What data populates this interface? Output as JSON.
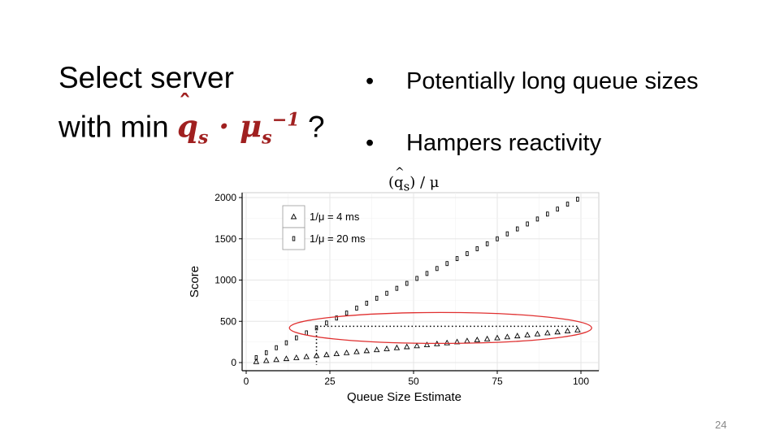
{
  "slide": {
    "title_line1": "Select server",
    "title_line2_prefix": "with min",
    "formula_q": "q",
    "formula_s": "s",
    "formula_dot": "·",
    "formula_mu": "μ",
    "formula_exp": "−1",
    "title_suffix": "?",
    "bullets": [
      "Potentially long queue sizes",
      "Hampers reactivity"
    ],
    "page_number": "24"
  },
  "chart_subtitle": {
    "open": "(",
    "q": "q",
    "s": "s",
    "rest": ") / μ"
  },
  "chart_data": {
    "type": "scatter",
    "xlabel": "Queue Size Estimate",
    "ylabel": "Score",
    "xlim": [
      0,
      100
    ],
    "ylim": [
      0,
      2000
    ],
    "xticks": [
      0,
      25,
      50,
      75,
      100
    ],
    "yticks": [
      0,
      500,
      1000,
      1500,
      2000
    ],
    "grid": true,
    "legend_position": "top-left",
    "series": [
      {
        "name": "1/μ = 4 ms",
        "marker": "triangle",
        "x": [
          3,
          6,
          9,
          12,
          15,
          18,
          21,
          24,
          27,
          30,
          33,
          36,
          39,
          42,
          45,
          48,
          51,
          54,
          57,
          60,
          63,
          66,
          69,
          72,
          75,
          78,
          81,
          84,
          87,
          90,
          93,
          96,
          99
        ],
        "y": [
          12,
          24,
          36,
          48,
          60,
          72,
          84,
          96,
          108,
          120,
          132,
          144,
          156,
          168,
          180,
          192,
          204,
          216,
          228,
          240,
          252,
          264,
          276,
          288,
          300,
          312,
          324,
          336,
          348,
          360,
          372,
          384,
          396
        ]
      },
      {
        "name": "1/μ = 20 ms",
        "marker": "square",
        "x": [
          3,
          6,
          9,
          12,
          15,
          18,
          21,
          24,
          27,
          30,
          33,
          36,
          39,
          42,
          45,
          48,
          51,
          54,
          57,
          60,
          63,
          66,
          69,
          72,
          75,
          78,
          81,
          84,
          87,
          90,
          93,
          96,
          99
        ],
        "y": [
          60,
          120,
          180,
          240,
          300,
          360,
          420,
          480,
          540,
          600,
          660,
          720,
          780,
          840,
          900,
          960,
          1020,
          1080,
          1140,
          1200,
          1260,
          1320,
          1380,
          1440,
          1500,
          1560,
          1620,
          1680,
          1740,
          1800,
          1860,
          1920,
          1980
        ]
      }
    ],
    "annotations": {
      "reference_point": {
        "x": 21,
        "y": 420
      },
      "ellipse_center": {
        "x": 60,
        "y": 400
      }
    }
  },
  "colors": {
    "formula": "#a02020",
    "ellipse": "#e03030",
    "panel_background": "#ffffff",
    "grid": "#e6e6e6",
    "page_number": "#888888"
  }
}
